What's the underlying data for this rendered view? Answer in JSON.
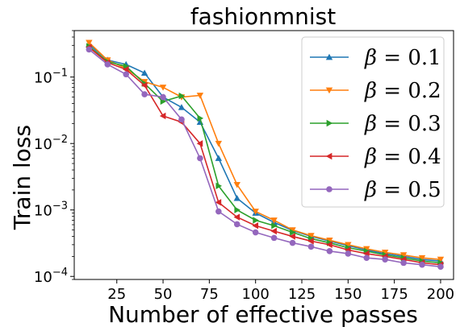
{
  "chart_data": {
    "type": "line",
    "title": "fashionmnist",
    "xlabel": "Number of effective passes",
    "ylabel": "Train loss",
    "yscale": "log",
    "xlim": [
      2,
      207
    ],
    "ylim": [
      9e-05,
      0.5
    ],
    "xticks": [
      25,
      50,
      75,
      100,
      125,
      150,
      175,
      200
    ],
    "yticks": [
      {
        "value": 0.0001,
        "base": "10",
        "exp": "−4"
      },
      {
        "value": 0.001,
        "base": "10",
        "exp": "−3"
      },
      {
        "value": 0.01,
        "base": "10",
        "exp": "−2"
      },
      {
        "value": 0.1,
        "base": "10",
        "exp": "−1"
      }
    ],
    "legend_position": "upper-right",
    "grid": false,
    "x": [
      10,
      20,
      30,
      40,
      50,
      60,
      70,
      80,
      90,
      100,
      110,
      120,
      130,
      140,
      150,
      160,
      170,
      180,
      190,
      200
    ],
    "series": [
      {
        "name": "β = 0.1",
        "symbol": "β",
        "rest": " = 0.1",
        "color": "#1f77b4",
        "marker": "triangle-up",
        "values": [
          0.31,
          0.18,
          0.155,
          0.115,
          0.05,
          0.035,
          0.021,
          0.006,
          0.0015,
          0.0009,
          0.00065,
          0.00049,
          0.0004,
          0.00034,
          0.00029,
          0.00025,
          0.00022,
          0.0002,
          0.00018,
          0.00017
        ]
      },
      {
        "name": "β = 0.2",
        "symbol": "β",
        "rest": " = 0.2",
        "color": "#ff7f0e",
        "marker": "triangle-down",
        "values": [
          0.33,
          0.18,
          0.135,
          0.085,
          0.07,
          0.05,
          0.053,
          0.01,
          0.0024,
          0.00095,
          0.0007,
          0.0005,
          0.00041,
          0.00035,
          0.0003,
          0.00026,
          0.00023,
          0.00021,
          0.00019,
          0.00018
        ]
      },
      {
        "name": "β = 0.3",
        "symbol": "β",
        "rest": " = 0.3",
        "color": "#2ca02c",
        "marker": "triangle-right",
        "values": [
          0.29,
          0.17,
          0.145,
          0.08,
          0.043,
          0.052,
          0.024,
          0.0023,
          0.001,
          0.0007,
          0.00058,
          0.00046,
          0.00037,
          0.00032,
          0.00027,
          0.00024,
          0.00021,
          0.00019,
          0.00017,
          0.00016
        ]
      },
      {
        "name": "β = 0.4",
        "symbol": "β",
        "rest": " = 0.4",
        "color": "#d62728",
        "marker": "triangle-left",
        "values": [
          0.28,
          0.165,
          0.13,
          0.075,
          0.026,
          0.021,
          0.01,
          0.0013,
          0.00078,
          0.00058,
          0.00048,
          0.0004,
          0.00034,
          0.0003,
          0.00025,
          0.00022,
          0.0002,
          0.00018,
          0.00016,
          0.00015
        ]
      },
      {
        "name": "β = 0.5",
        "symbol": "β",
        "rest": " = 0.5",
        "color": "#9467bd",
        "marker": "circle",
        "values": [
          0.26,
          0.155,
          0.11,
          0.055,
          0.05,
          0.023,
          0.006,
          0.00095,
          0.00061,
          0.00046,
          0.00038,
          0.00032,
          0.00028,
          0.00024,
          0.00022,
          0.00019,
          0.00018,
          0.00016,
          0.00015,
          0.00014
        ]
      }
    ]
  }
}
